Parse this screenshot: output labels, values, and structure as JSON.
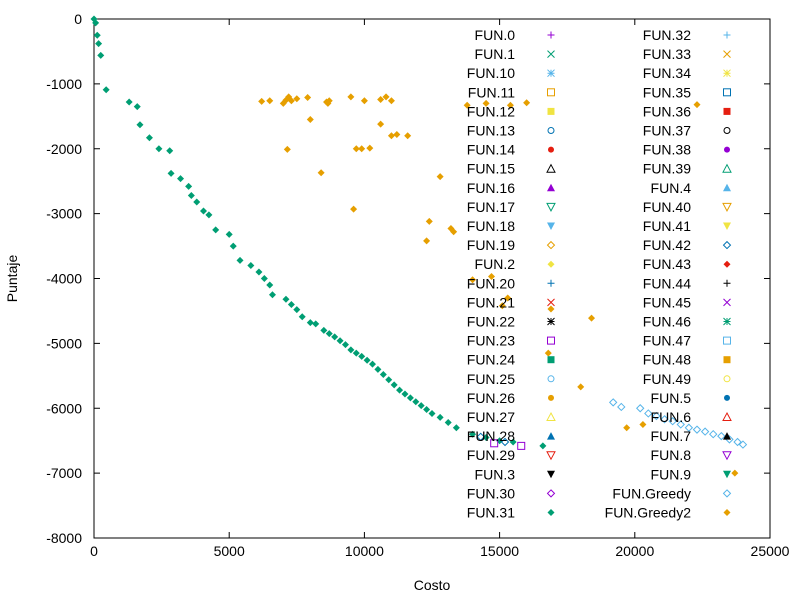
{
  "chart_data": {
    "type": "scatter",
    "xlabel": "Costo",
    "ylabel": "Puntaje",
    "xlim": [
      0,
      25000
    ],
    "ylim": [
      -8000,
      0
    ],
    "x_ticks": [
      "0",
      "5000",
      "10000",
      "15000",
      "20000",
      "25000"
    ],
    "y_ticks": [
      "0",
      "-1000",
      "-2000",
      "-3000",
      "-4000",
      "-5000",
      "-6000",
      "-7000",
      "-8000"
    ],
    "grid": false,
    "legend_position": "top-right",
    "legend": [
      {
        "name": "FUN.0",
        "color": "#9400d3",
        "marker": "plus"
      },
      {
        "name": "FUN.1",
        "color": "#009e73",
        "marker": "cross"
      },
      {
        "name": "FUN.10",
        "color": "#56b4e9",
        "marker": "star"
      },
      {
        "name": "FUN.11",
        "color": "#e69f00",
        "marker": "square-open"
      },
      {
        "name": "FUN.12",
        "color": "#f0e442",
        "marker": "square"
      },
      {
        "name": "FUN.13",
        "color": "#0072b2",
        "marker": "circle-open"
      },
      {
        "name": "FUN.14",
        "color": "#e51e10",
        "marker": "circle"
      },
      {
        "name": "FUN.15",
        "color": "#000000",
        "marker": "triangle-open"
      },
      {
        "name": "FUN.16",
        "color": "#9400d3",
        "marker": "triangle"
      },
      {
        "name": "FUN.17",
        "color": "#009e73",
        "marker": "triangle-down-open"
      },
      {
        "name": "FUN.18",
        "color": "#56b4e9",
        "marker": "triangle-down"
      },
      {
        "name": "FUN.19",
        "color": "#e69f00",
        "marker": "diamond-open"
      },
      {
        "name": "FUN.2",
        "color": "#f0e442",
        "marker": "diamond"
      },
      {
        "name": "FUN.20",
        "color": "#0072b2",
        "marker": "plus"
      },
      {
        "name": "FUN.21",
        "color": "#e51e10",
        "marker": "cross"
      },
      {
        "name": "FUN.22",
        "color": "#000000",
        "marker": "star"
      },
      {
        "name": "FUN.23",
        "color": "#9400d3",
        "marker": "square-open"
      },
      {
        "name": "FUN.24",
        "color": "#009e73",
        "marker": "square"
      },
      {
        "name": "FUN.25",
        "color": "#56b4e9",
        "marker": "circle-open"
      },
      {
        "name": "FUN.26",
        "color": "#e69f00",
        "marker": "circle"
      },
      {
        "name": "FUN.27",
        "color": "#f0e442",
        "marker": "triangle-open"
      },
      {
        "name": "FUN.28",
        "color": "#0072b2",
        "marker": "triangle"
      },
      {
        "name": "FUN.29",
        "color": "#e51e10",
        "marker": "triangle-down-open"
      },
      {
        "name": "FUN.3",
        "color": "#000000",
        "marker": "triangle-down"
      },
      {
        "name": "FUN.30",
        "color": "#9400d3",
        "marker": "diamond-open"
      },
      {
        "name": "FUN.31",
        "color": "#009e73",
        "marker": "diamond"
      },
      {
        "name": "FUN.32",
        "color": "#56b4e9",
        "marker": "plus"
      },
      {
        "name": "FUN.33",
        "color": "#e69f00",
        "marker": "cross"
      },
      {
        "name": "FUN.34",
        "color": "#f0e442",
        "marker": "star"
      },
      {
        "name": "FUN.35",
        "color": "#0072b2",
        "marker": "square-open"
      },
      {
        "name": "FUN.36",
        "color": "#e51e10",
        "marker": "square"
      },
      {
        "name": "FUN.37",
        "color": "#000000",
        "marker": "circle-open"
      },
      {
        "name": "FUN.38",
        "color": "#9400d3",
        "marker": "circle"
      },
      {
        "name": "FUN.39",
        "color": "#009e73",
        "marker": "triangle-open"
      },
      {
        "name": "FUN.4",
        "color": "#56b4e9",
        "marker": "triangle"
      },
      {
        "name": "FUN.40",
        "color": "#e69f00",
        "marker": "triangle-down-open"
      },
      {
        "name": "FUN.41",
        "color": "#f0e442",
        "marker": "triangle-down"
      },
      {
        "name": "FUN.42",
        "color": "#0072b2",
        "marker": "diamond-open"
      },
      {
        "name": "FUN.43",
        "color": "#e51e10",
        "marker": "diamond"
      },
      {
        "name": "FUN.44",
        "color": "#000000",
        "marker": "plus"
      },
      {
        "name": "FUN.45",
        "color": "#9400d3",
        "marker": "cross"
      },
      {
        "name": "FUN.46",
        "color": "#009e73",
        "marker": "star"
      },
      {
        "name": "FUN.47",
        "color": "#56b4e9",
        "marker": "square-open"
      },
      {
        "name": "FUN.48",
        "color": "#e69f00",
        "marker": "square"
      },
      {
        "name": "FUN.49",
        "color": "#f0e442",
        "marker": "circle-open"
      },
      {
        "name": "FUN.5",
        "color": "#0072b2",
        "marker": "circle"
      },
      {
        "name": "FUN.6",
        "color": "#e51e10",
        "marker": "triangle-open"
      },
      {
        "name": "FUN.7",
        "color": "#000000",
        "marker": "triangle"
      },
      {
        "name": "FUN.8",
        "color": "#9400d3",
        "marker": "triangle-down-open"
      },
      {
        "name": "FUN.9",
        "color": "#009e73",
        "marker": "triangle-down"
      },
      {
        "name": "FUN.Greedy",
        "color": "#56b4e9",
        "marker": "diamond-open"
      },
      {
        "name": "FUN.Greedy2",
        "color": "#e69f00",
        "marker": "diamond"
      }
    ],
    "series": [
      {
        "name": "FUN.31",
        "color": "#009e73",
        "marker": "diamond",
        "points": [
          [
            0,
            0
          ],
          [
            60,
            -60
          ],
          [
            120,
            -250
          ],
          [
            170,
            -380
          ],
          [
            250,
            -560
          ],
          [
            450,
            -1090
          ],
          [
            1300,
            -1280
          ],
          [
            1600,
            -1350
          ],
          [
            1700,
            -1630
          ],
          [
            2050,
            -1830
          ],
          [
            2400,
            -2000
          ],
          [
            2800,
            -2030
          ],
          [
            2850,
            -2380
          ],
          [
            3200,
            -2460
          ],
          [
            3500,
            -2580
          ],
          [
            3600,
            -2720
          ],
          [
            3800,
            -2820
          ],
          [
            4050,
            -2960
          ],
          [
            4250,
            -3020
          ],
          [
            4500,
            -3250
          ],
          [
            5000,
            -3320
          ],
          [
            5150,
            -3500
          ],
          [
            5400,
            -3720
          ],
          [
            5800,
            -3800
          ],
          [
            6100,
            -3900
          ],
          [
            6300,
            -4000
          ],
          [
            6500,
            -4100
          ],
          [
            6600,
            -4250
          ],
          [
            7100,
            -4320
          ],
          [
            7300,
            -4400
          ],
          [
            7500,
            -4480
          ],
          [
            7700,
            -4590
          ],
          [
            8000,
            -4680
          ],
          [
            8200,
            -4700
          ],
          [
            8500,
            -4800
          ],
          [
            8700,
            -4850
          ],
          [
            8900,
            -4900
          ],
          [
            9100,
            -4960
          ],
          [
            9300,
            -5020
          ],
          [
            9500,
            -5100
          ],
          [
            9700,
            -5150
          ],
          [
            9900,
            -5200
          ],
          [
            10100,
            -5260
          ],
          [
            10300,
            -5320
          ],
          [
            10500,
            -5400
          ],
          [
            10700,
            -5480
          ],
          [
            10900,
            -5560
          ],
          [
            11100,
            -5640
          ],
          [
            11300,
            -5720
          ],
          [
            11500,
            -5780
          ],
          [
            11700,
            -5840
          ],
          [
            11900,
            -5900
          ],
          [
            12100,
            -5960
          ],
          [
            12300,
            -6020
          ],
          [
            12500,
            -6080
          ],
          [
            12800,
            -6140
          ],
          [
            13100,
            -6220
          ],
          [
            13400,
            -6300
          ],
          [
            14000,
            -6400
          ],
          [
            14500,
            -6450
          ],
          [
            15000,
            -6500
          ],
          [
            15500,
            -6520
          ],
          [
            16600,
            -6580
          ]
        ]
      },
      {
        "name": "FUN.Greedy",
        "color": "#56b4e9",
        "marker": "diamond-open",
        "points": [
          [
            19200,
            -5910
          ],
          [
            19500,
            -5980
          ],
          [
            20200,
            -6000
          ],
          [
            20500,
            -6080
          ],
          [
            20800,
            -6120
          ],
          [
            21100,
            -6170
          ],
          [
            21400,
            -6200
          ],
          [
            21700,
            -6250
          ],
          [
            22000,
            -6300
          ],
          [
            22300,
            -6330
          ],
          [
            22600,
            -6360
          ],
          [
            22900,
            -6400
          ],
          [
            23200,
            -6430
          ],
          [
            23500,
            -6480
          ],
          [
            23800,
            -6520
          ],
          [
            24000,
            -6560
          ]
        ]
      },
      {
        "name": "FUN.Greedy2",
        "color": "#e69f00",
        "marker": "diamond",
        "points": [
          [
            6200,
            -1270
          ],
          [
            6500,
            -1260
          ],
          [
            7000,
            -1300
          ],
          [
            7100,
            -1250
          ],
          [
            7200,
            -1200
          ],
          [
            7300,
            -1260
          ],
          [
            7500,
            -1230
          ],
          [
            7900,
            -1210
          ],
          [
            8000,
            -1550
          ],
          [
            8600,
            -1280
          ],
          [
            8650,
            -1300
          ],
          [
            8700,
            -1260
          ],
          [
            9500,
            -1200
          ],
          [
            10000,
            -1260
          ],
          [
            10600,
            -1240
          ],
          [
            10800,
            -1200
          ],
          [
            11000,
            -1260
          ],
          [
            7150,
            -2010
          ],
          [
            8400,
            -2370
          ],
          [
            9700,
            -2000
          ],
          [
            9900,
            -2000
          ],
          [
            10200,
            -1990
          ],
          [
            11000,
            -1800
          ],
          [
            11200,
            -1780
          ],
          [
            11600,
            -1800
          ],
          [
            10600,
            -1620
          ],
          [
            12800,
            -2430
          ],
          [
            9600,
            -2930
          ],
          [
            12400,
            -3120
          ],
          [
            12300,
            -3420
          ],
          [
            13200,
            -3230
          ],
          [
            13300,
            -3280
          ],
          [
            13800,
            -1330
          ],
          [
            14500,
            -1300
          ],
          [
            15400,
            -1330
          ],
          [
            16000,
            -1290
          ],
          [
            14700,
            -3970
          ],
          [
            14000,
            -4020
          ],
          [
            15100,
            -4420
          ],
          [
            15300,
            -4300
          ],
          [
            16900,
            -4470
          ],
          [
            18400,
            -4610
          ],
          [
            16800,
            -5150
          ],
          [
            18000,
            -5670
          ],
          [
            19700,
            -6300
          ],
          [
            20300,
            -6250
          ],
          [
            22300,
            -1320
          ],
          [
            23700,
            -7000
          ]
        ]
      },
      {
        "name": "FUN.23",
        "color": "#9400d3",
        "marker": "square-open",
        "points": [
          [
            14800,
            -6540
          ],
          [
            15800,
            -6580
          ]
        ]
      },
      {
        "name": "FUN.42",
        "color": "#0072b2",
        "marker": "diamond-open",
        "points": [
          [
            14300,
            -6440
          ],
          [
            15200,
            -6520
          ]
        ]
      }
    ]
  }
}
